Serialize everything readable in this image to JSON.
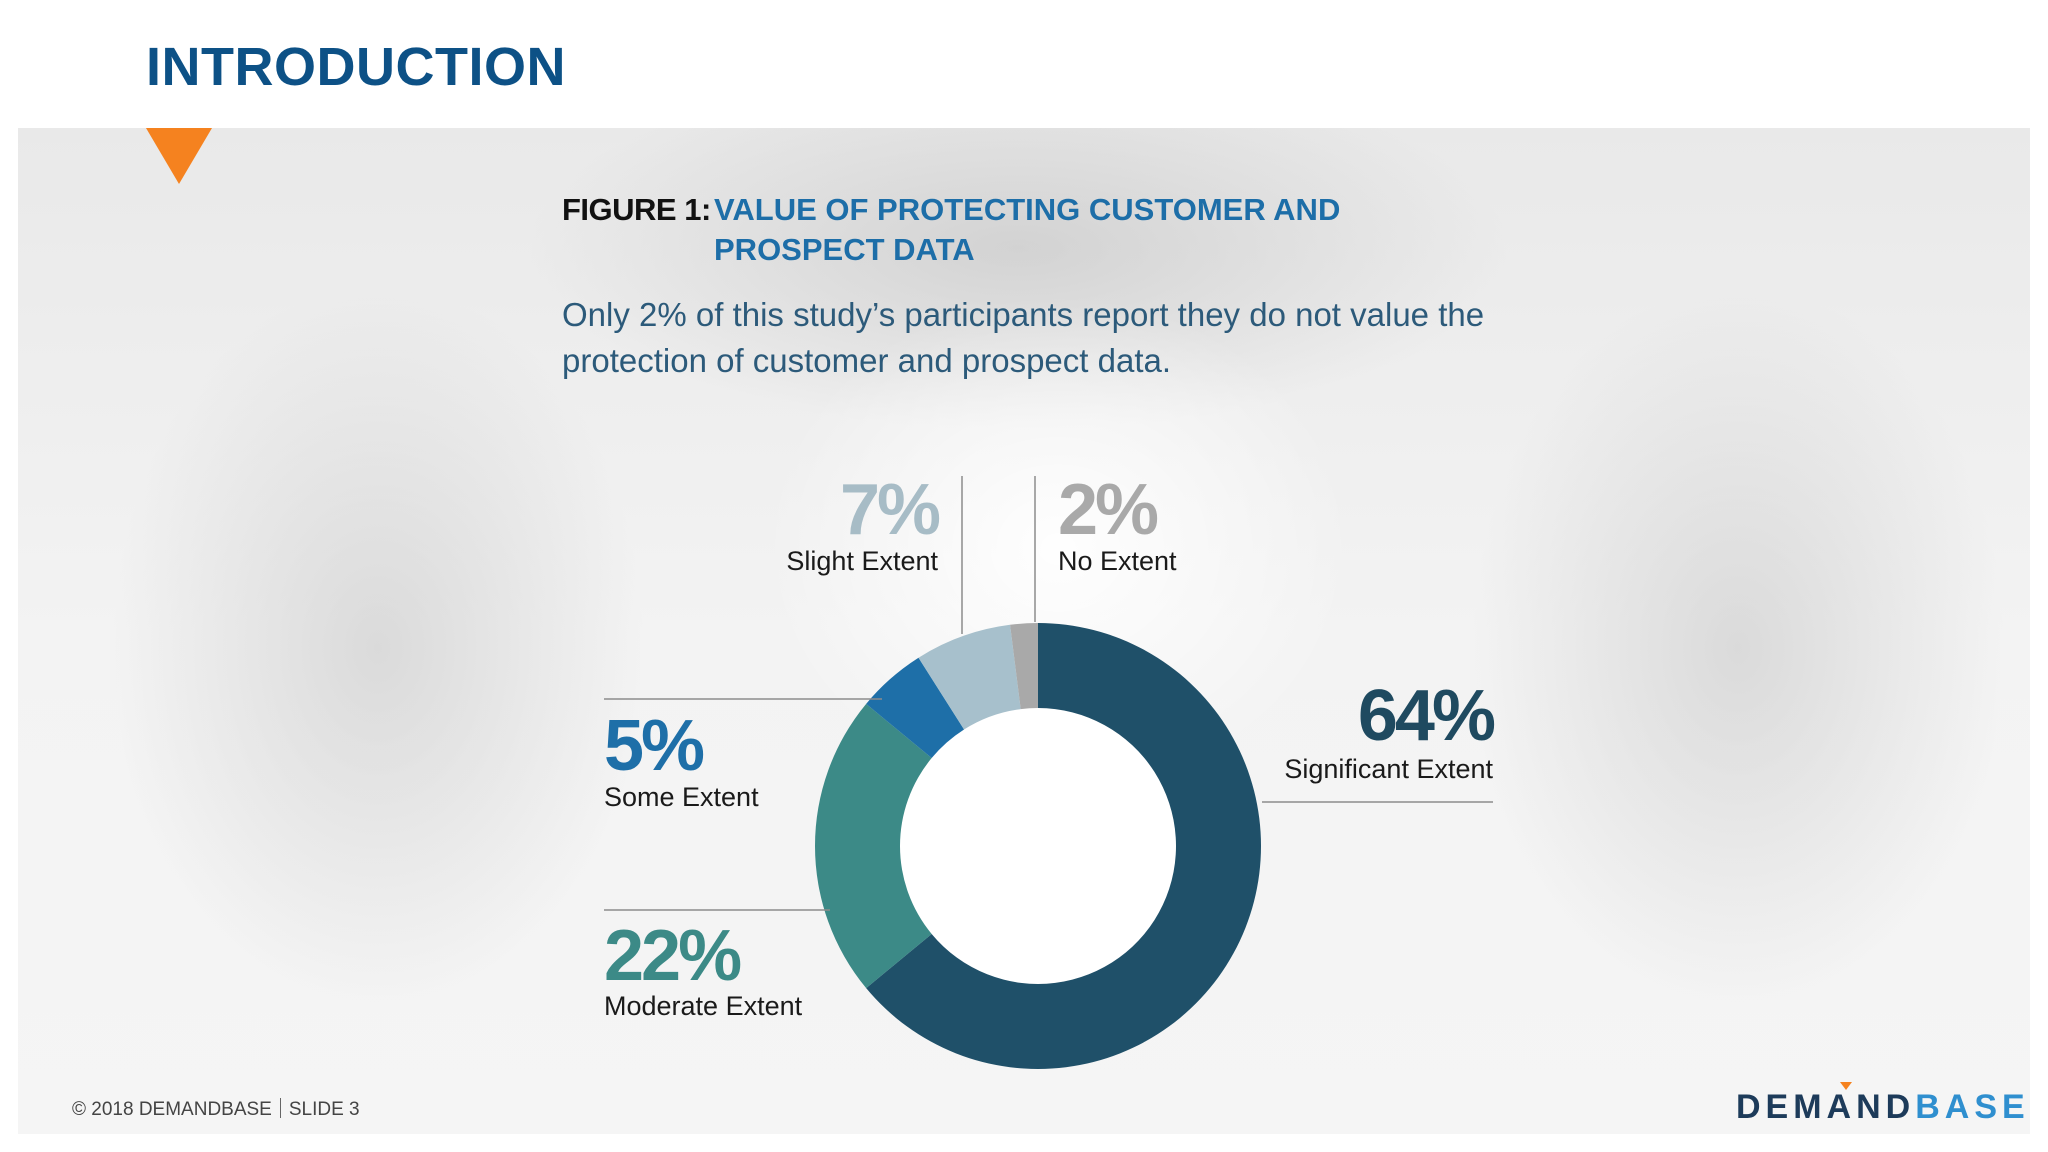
{
  "slide": {
    "title": "INTRODUCTION",
    "figure_label": "FIGURE 1:",
    "figure_title_line1": "VALUE OF PROTECTING CUSTOMER AND",
    "figure_title_line2": "PROSPECT DATA",
    "subtitle_line1": "Only 2% of this study’s participants report they do not value the",
    "subtitle_line2": "protection of customer and prospect data."
  },
  "chart_data": {
    "type": "pie",
    "donut": true,
    "title": "VALUE OF PROTECTING CUSTOMER AND PROSPECT DATA",
    "slices": [
      {
        "label": "Significant Extent",
        "value": 64,
        "display": "64%",
        "color": "#1f5069"
      },
      {
        "label": "Moderate Extent",
        "value": 22,
        "display": "22%",
        "color": "#3c8a87"
      },
      {
        "label": "Some Extent",
        "value": 5,
        "display": "5%",
        "color": "#1e6fa8"
      },
      {
        "label": "Slight Extent",
        "value": 7,
        "display": "7%",
        "color": "#a7c0cc"
      },
      {
        "label": "No Extent",
        "value": 2,
        "display": "2%",
        "color": "#a9a9a9"
      }
    ],
    "label_colors": {
      "Significant Extent": "#1f4a60",
      "Moderate Extent": "#3c8a87",
      "Some Extent": "#1e6fa8",
      "Slight Extent": "#a7bcc6",
      "No Extent": "#a9a9a9"
    }
  },
  "footer": {
    "copyright": "© 2018 DEMANDBASE",
    "slide_number": "SLIDE 3"
  },
  "brand": {
    "part1": "DEMAND",
    "part2": "BASE",
    "accent_color": "#f5821f"
  }
}
